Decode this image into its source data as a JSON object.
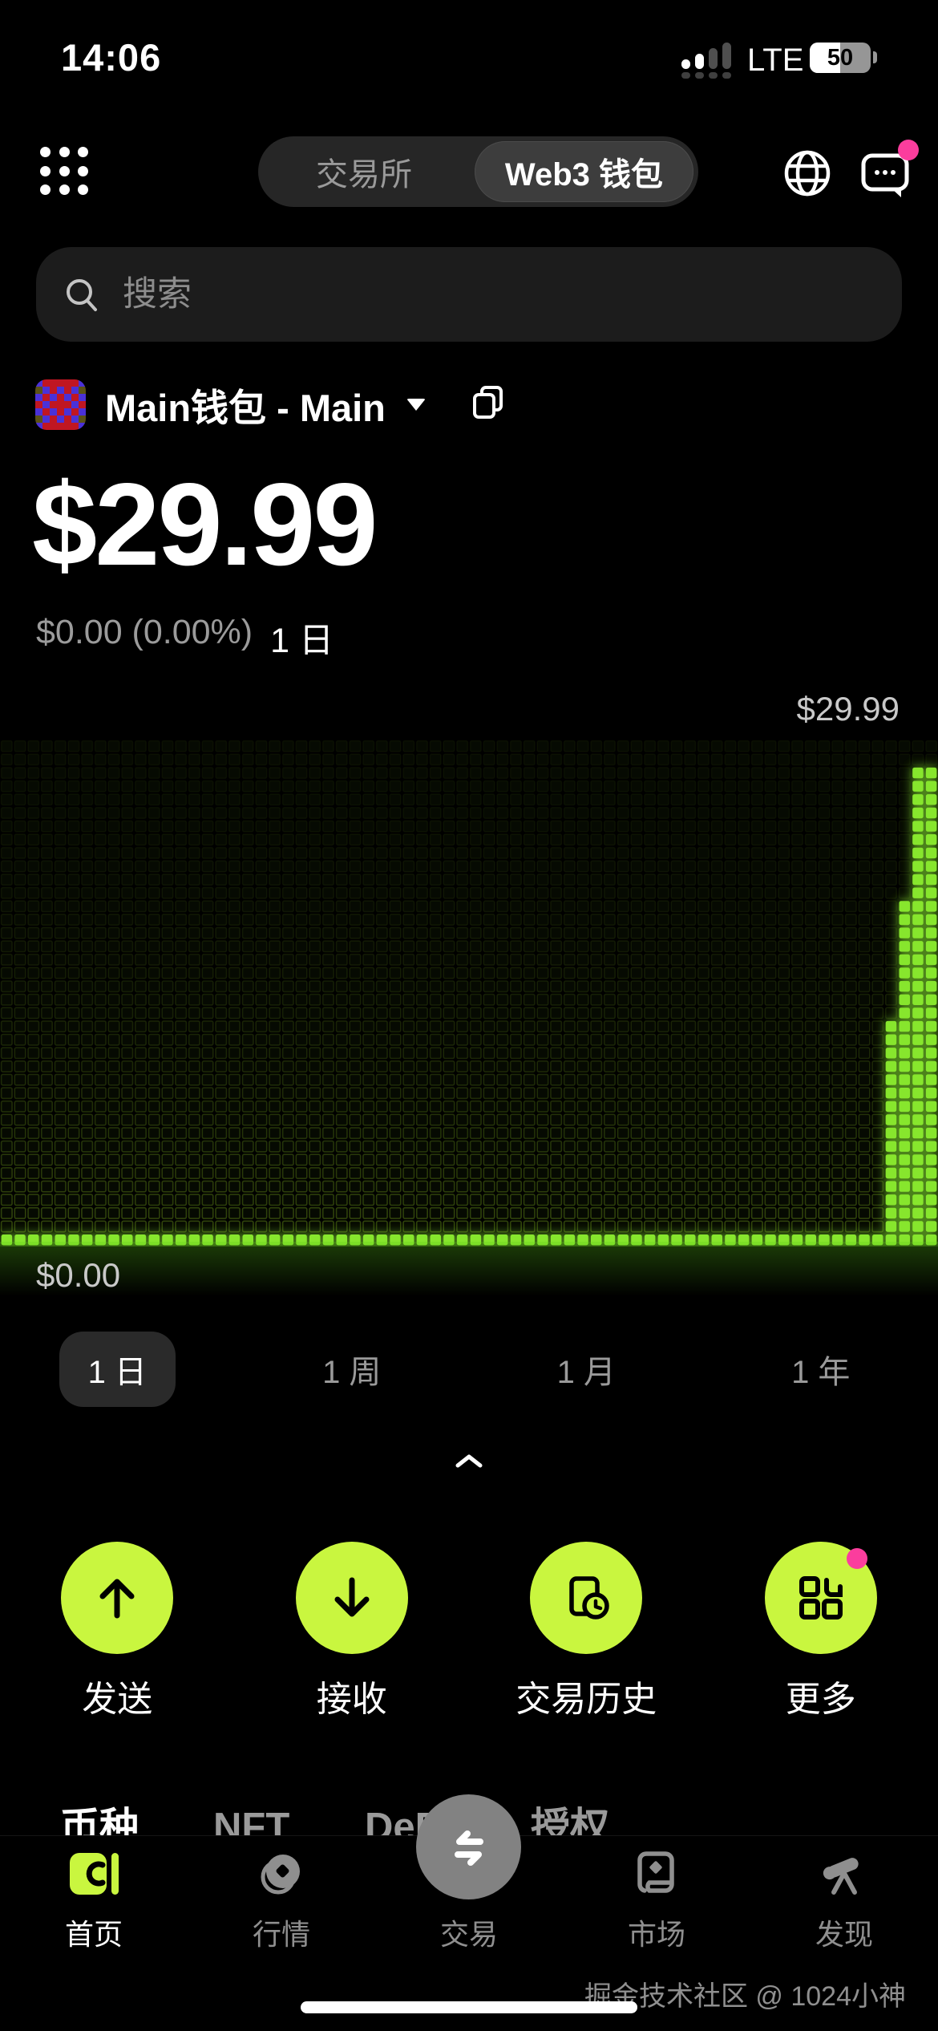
{
  "status_bar": {
    "time": "14:06",
    "network": "LTE",
    "battery_percent": "50"
  },
  "header": {
    "segments": [
      {
        "label": "交易所",
        "selected": false
      },
      {
        "label": "Web3 钱包",
        "selected": true
      }
    ],
    "icons": [
      "menu-grid-icon",
      "globe-icon",
      "chat-icon"
    ],
    "chat_has_badge": true
  },
  "search": {
    "placeholder": "搜索",
    "value": ""
  },
  "wallet": {
    "name": "Main钱包 - Main",
    "balance": "$29.99",
    "change": "$0.00 (0.00%)",
    "change_period": "1 日"
  },
  "chart_data": {
    "type": "area",
    "style": "led-matrix",
    "title": "",
    "xlabel": "",
    "ylabel": "",
    "y_top_label": "$29.99",
    "y_bottom_label": "$0.00",
    "ylim": [
      0,
      29.99
    ],
    "x_range": "1 日",
    "grid": {
      "cols": 70,
      "rows": 38
    },
    "legend": "none",
    "series": [
      {
        "name": "portfolio-value-usd",
        "description": "flat at $0 all day, steps up to $29.99 at the end",
        "step_points": [
          {
            "x_frac": 0.0,
            "y": 0
          },
          {
            "x_frac": 0.945,
            "y": 13.9
          },
          {
            "x_frac": 0.959,
            "y": 21.7
          },
          {
            "x_frac": 0.973,
            "y": 29.99
          }
        ]
      }
    ],
    "baseline_row_lit": true,
    "lit_color": "#87e62d",
    "grid_line_color": "#4c6a12",
    "unlit_fill": "#060a02"
  },
  "range_tabs": [
    {
      "label": "1 日",
      "selected": true
    },
    {
      "label": "1 周",
      "selected": false
    },
    {
      "label": "1 月",
      "selected": false
    },
    {
      "label": "1 年",
      "selected": false
    }
  ],
  "actions": [
    {
      "label": "发送",
      "icon": "arrow-up-icon",
      "badge": false
    },
    {
      "label": "接收",
      "icon": "arrow-down-icon",
      "badge": false
    },
    {
      "label": "交易历史",
      "icon": "history-doc-icon",
      "badge": false
    },
    {
      "label": "更多",
      "icon": "more-grid-icon",
      "badge": true
    }
  ],
  "asset_tabs": [
    {
      "label": "币种",
      "selected": true
    },
    {
      "label": "NFT",
      "selected": false
    },
    {
      "label": "DeFi",
      "selected": false
    },
    {
      "label": "授权",
      "selected": false
    }
  ],
  "bottom_nav": [
    {
      "label": "首页",
      "icon": "wallet-home-icon",
      "active": true
    },
    {
      "label": "行情",
      "icon": "coin-icon",
      "active": false
    },
    {
      "label": "交易",
      "icon": "swap-icon",
      "active": false,
      "center_button": true
    },
    {
      "label": "市场",
      "icon": "card-icon",
      "active": false
    },
    {
      "label": "发现",
      "icon": "telescope-icon",
      "active": false
    }
  ],
  "watermark": {
    "text": "掘金技术社区 @ 1024小神"
  },
  "colors": {
    "lime": "#c9f63f",
    "pink": "#fb3d9d",
    "led_green": "#87e62d",
    "trade_circle_gray": "#828282",
    "muted_text": "#9a9a9a"
  },
  "avatar": {
    "palette": {
      "B": "#4a31d8",
      "R": "#c01622",
      "O": "#5c5216"
    },
    "pixels": [
      "BRRRRRB",
      "OBRBRBO",
      "BRBRBRB",
      "RBRRRBR",
      "BRBRBRB",
      "OBRBRBO",
      "BRRRRRB"
    ]
  }
}
